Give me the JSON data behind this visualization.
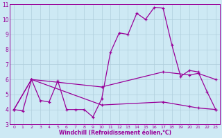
{
  "xlabel": "Windchill (Refroidissement éolien,°C)",
  "bg_color": "#cde9f4",
  "line_color": "#990099",
  "grid_color": "#b0cedd",
  "xlim": [
    -0.5,
    23.5
  ],
  "ylim": [
    3,
    11
  ],
  "xticks": [
    0,
    1,
    2,
    3,
    4,
    5,
    6,
    7,
    8,
    9,
    10,
    11,
    12,
    13,
    14,
    15,
    16,
    17,
    18,
    19,
    20,
    21,
    22,
    23
  ],
  "yticks": [
    3,
    4,
    5,
    6,
    7,
    8,
    9,
    10,
    11
  ],
  "line1_x": [
    0,
    1,
    2,
    3,
    4,
    5,
    6,
    7,
    8,
    9,
    10,
    11,
    12,
    13,
    14,
    15,
    16,
    17,
    18,
    19,
    20,
    21,
    22,
    23
  ],
  "line1_y": [
    4.0,
    3.9,
    6.0,
    4.6,
    4.5,
    5.9,
    4.0,
    4.0,
    4.0,
    3.5,
    4.7,
    7.8,
    9.1,
    9.0,
    10.4,
    10.0,
    10.8,
    10.75,
    8.3,
    6.2,
    6.6,
    6.5,
    5.2,
    4.0
  ],
  "line2_x": [
    0,
    2,
    10,
    17,
    20,
    21,
    23
  ],
  "line2_y": [
    4.0,
    6.0,
    5.5,
    6.5,
    6.3,
    6.4,
    6.0
  ],
  "line3_x": [
    0,
    2,
    10,
    17,
    20,
    21,
    23
  ],
  "line3_y": [
    4.0,
    6.0,
    4.3,
    4.5,
    4.2,
    4.1,
    4.0
  ],
  "xlabel_fontsize": 5.5,
  "ytick_fontsize": 5.5,
  "xtick_fontsize": 4.5
}
